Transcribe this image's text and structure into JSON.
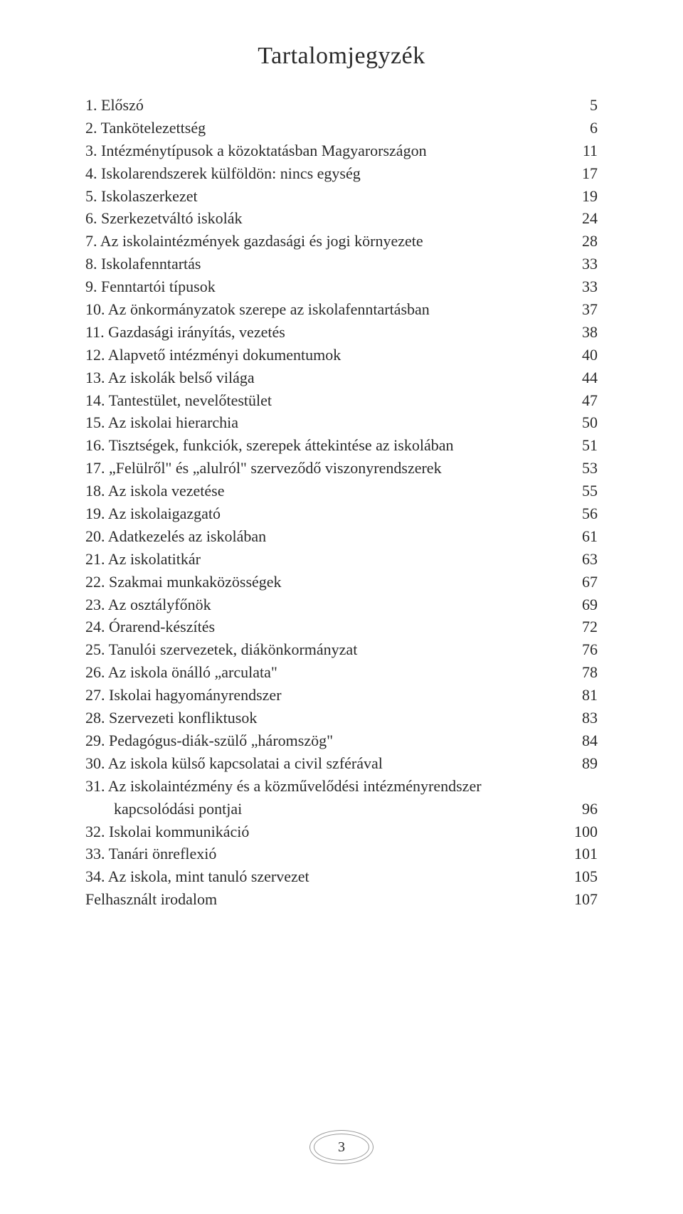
{
  "title": "Tartalomjegyzék",
  "page_number": "3",
  "font": {
    "family": "Bookman Old Style, Georgia, serif",
    "title_fontsize": 34,
    "body_fontsize": 22,
    "color": "#2a2a2a"
  },
  "colors": {
    "background": "#ffffff",
    "frame_border": "#9a9a9a"
  },
  "toc": [
    {
      "label": "1.  Előszó",
      "page": "5",
      "indent": false
    },
    {
      "label": "2.  Tankötelezettség",
      "page": "6",
      "indent": false
    },
    {
      "label": "3.  Intézménytípusok a közoktatásban Magyarországon",
      "page": "11",
      "indent": false
    },
    {
      "label": "4.  Iskolarendszerek külföldön: nincs egység",
      "page": "17",
      "indent": false
    },
    {
      "label": "5.  Iskolaszerkezet",
      "page": "19",
      "indent": false
    },
    {
      "label": "6.  Szerkezetváltó iskolák",
      "page": "24",
      "indent": false
    },
    {
      "label": "7.  Az iskolaintézmények gazdasági és jogi környezete",
      "page": "28",
      "indent": false
    },
    {
      "label": "8.  Iskolafenntartás",
      "page": "33",
      "indent": false
    },
    {
      "label": "9.  Fenntartói típusok",
      "page": "33",
      "indent": false
    },
    {
      "label": "10.  Az önkormányzatok szerepe az iskolafenntartásban",
      "page": "37",
      "indent": false
    },
    {
      "label": "11.  Gazdasági irányítás, vezetés",
      "page": "38",
      "indent": false
    },
    {
      "label": "12.  Alapvető intézményi dokumentumok",
      "page": "40",
      "indent": false
    },
    {
      "label": "13.  Az iskolák belső világa",
      "page": "44",
      "indent": false
    },
    {
      "label": "14.  Tantestület, nevelőtestület",
      "page": "47",
      "indent": false
    },
    {
      "label": "15.  Az iskolai hierarchia",
      "page": "50",
      "indent": false
    },
    {
      "label": "16.  Tisztségek, funkciók, szerepek áttekintése az iskolában",
      "page": "51",
      "indent": false
    },
    {
      "label": "17.  „Felülről\" és „alulról\" szerveződő viszonyrendszerek",
      "page": "53",
      "indent": false
    },
    {
      "label": "18.  Az iskola vezetése",
      "page": "55",
      "indent": false
    },
    {
      "label": "19.  Az iskolaigazgató",
      "page": "56",
      "indent": false
    },
    {
      "label": "20.  Adatkezelés az iskolában",
      "page": "61",
      "indent": false
    },
    {
      "label": "21.  Az iskolatitkár",
      "page": "63",
      "indent": false
    },
    {
      "label": "22.  Szakmai munkaközösségek",
      "page": "67",
      "indent": false
    },
    {
      "label": "23.  Az osztályfőnök",
      "page": "69",
      "indent": false
    },
    {
      "label": "24.  Órarend-készítés",
      "page": "72",
      "indent": false
    },
    {
      "label": "25.  Tanulói szervezetek, diákönkormányzat",
      "page": "76",
      "indent": false
    },
    {
      "label": "26.  Az iskola önálló „arculata\"",
      "page": "78",
      "indent": false
    },
    {
      "label": "27.  Iskolai hagyományrendszer",
      "page": "81",
      "indent": false
    },
    {
      "label": "28.  Szervezeti konfliktusok",
      "page": "83",
      "indent": false
    },
    {
      "label": "29.  Pedagógus-diák-szülő „háromszög\"",
      "page": "84",
      "indent": false
    },
    {
      "label": "30.  Az iskola külső kapcsolatai a civil szférával",
      "page": "89",
      "indent": false
    },
    {
      "label": "31.  Az iskolaintézmény és a közművelődési intézményrendszer",
      "page": "",
      "indent": false
    },
    {
      "label": "kapcsolódási pontjai",
      "page": "96",
      "indent": true
    },
    {
      "label": "32.  Iskolai kommunikáció",
      "page": "100",
      "indent": false
    },
    {
      "label": "33.  Tanári önreflexió",
      "page": "101",
      "indent": false
    },
    {
      "label": "34.  Az iskola, mint tanuló szervezet",
      "page": "105",
      "indent": false
    },
    {
      "label": "Felhasznált irodalom",
      "page": "107",
      "indent": false
    }
  ]
}
